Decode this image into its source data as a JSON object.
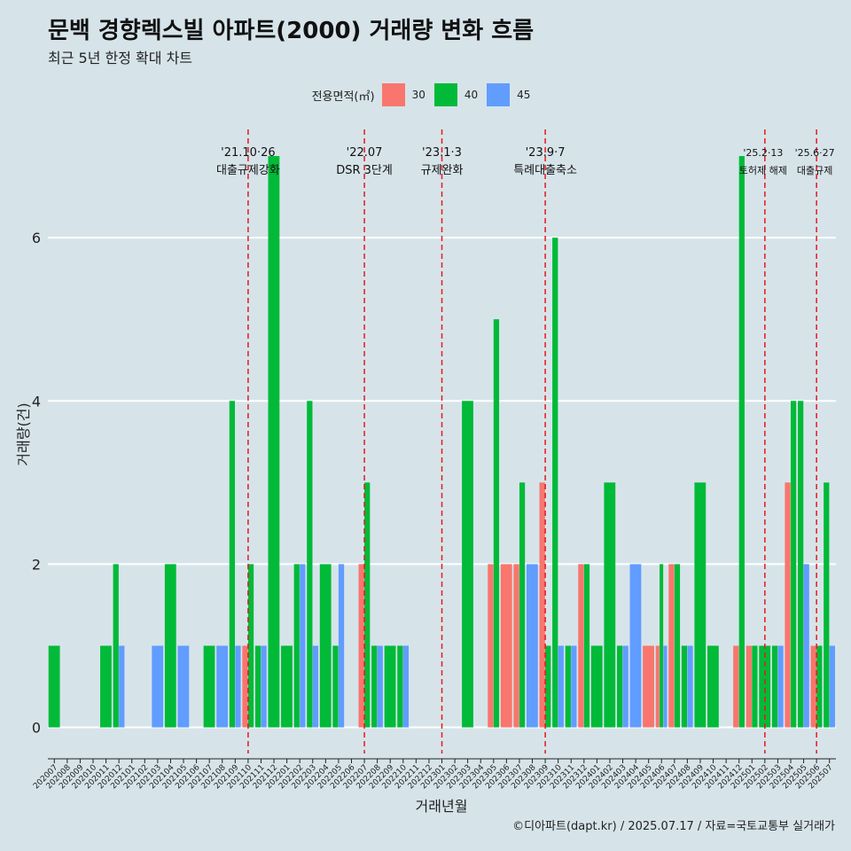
{
  "title": "문백 경향렉스빌 아파트(2000) 거래량 변화 흐름",
  "subtitle": "최근 5년 한정 확대 차트",
  "caption": "©디아파트(dapt.kr) / 2025.07.17 / 자료=국토교통부 실거래가",
  "legend": {
    "title": "전용면적(㎡)",
    "items": [
      {
        "label": "30",
        "color": "#f8766d"
      },
      {
        "label": "40",
        "color": "#00ba38"
      },
      {
        "label": "45",
        "color": "#619cff"
      }
    ]
  },
  "colors": {
    "background": "#d6e4ea",
    "grid": "#ffffff",
    "event_line": "#e41a1c"
  },
  "chart_data": {
    "type": "bar",
    "xlabel": "거래년월",
    "ylabel": "거래량(건)",
    "ylim": [
      -0.32,
      7.5
    ],
    "yticks": [
      0,
      2,
      4,
      6
    ],
    "months": [
      "202007",
      "202008",
      "202009",
      "202010",
      "202011",
      "202012",
      "202101",
      "202102",
      "202103",
      "202104",
      "202105",
      "202106",
      "202107",
      "202108",
      "202109",
      "202110",
      "202111",
      "202112",
      "202201",
      "202202",
      "202203",
      "202204",
      "202205",
      "202206",
      "202207",
      "202208",
      "202209",
      "202210",
      "202211",
      "202212",
      "202301",
      "202302",
      "202303",
      "202304",
      "202305",
      "202306",
      "202307",
      "202308",
      "202309",
      "202310",
      "202311",
      "202312",
      "202401",
      "202402",
      "202403",
      "202404",
      "202405",
      "202406",
      "202407",
      "202408",
      "202409",
      "202410",
      "202411",
      "202412",
      "202501",
      "202502",
      "202503",
      "202504",
      "202505",
      "202506",
      "202507"
    ],
    "series": [
      {
        "name": "30",
        "color": "#f8766d",
        "points": [
          {
            "x": "202110",
            "y": 1
          },
          {
            "x": "202207",
            "y": 2
          },
          {
            "x": "202305",
            "y": 2
          },
          {
            "x": "202306",
            "y": 2
          },
          {
            "x": "202307",
            "y": 2
          },
          {
            "x": "202309",
            "y": 3
          },
          {
            "x": "202312",
            "y": 2
          },
          {
            "x": "202405",
            "y": 1
          },
          {
            "x": "202406",
            "y": 1
          },
          {
            "x": "202407",
            "y": 2
          },
          {
            "x": "202412",
            "y": 1
          },
          {
            "x": "202501",
            "y": 1
          },
          {
            "x": "202504",
            "y": 3
          },
          {
            "x": "202506",
            "y": 1
          }
        ]
      },
      {
        "name": "40",
        "color": "#00ba38",
        "points": [
          {
            "x": "202007",
            "y": 1
          },
          {
            "x": "202011",
            "y": 1
          },
          {
            "x": "202012",
            "y": 2
          },
          {
            "x": "202104",
            "y": 2
          },
          {
            "x": "202107",
            "y": 1
          },
          {
            "x": "202109",
            "y": 4
          },
          {
            "x": "202110",
            "y": 2
          },
          {
            "x": "202111",
            "y": 1
          },
          {
            "x": "202112",
            "y": 7
          },
          {
            "x": "202201",
            "y": 1
          },
          {
            "x": "202202",
            "y": 2
          },
          {
            "x": "202203",
            "y": 4
          },
          {
            "x": "202204",
            "y": 2
          },
          {
            "x": "202205",
            "y": 1
          },
          {
            "x": "202207",
            "y": 3
          },
          {
            "x": "202208",
            "y": 1
          },
          {
            "x": "202209",
            "y": 1
          },
          {
            "x": "202210",
            "y": 1
          },
          {
            "x": "202303",
            "y": 4
          },
          {
            "x": "202305",
            "y": 5
          },
          {
            "x": "202307",
            "y": 3
          },
          {
            "x": "202309",
            "y": 1
          },
          {
            "x": "202310",
            "y": 6
          },
          {
            "x": "202311",
            "y": 1
          },
          {
            "x": "202312",
            "y": 2
          },
          {
            "x": "202401",
            "y": 1
          },
          {
            "x": "202402",
            "y": 3
          },
          {
            "x": "202403",
            "y": 1
          },
          {
            "x": "202406",
            "y": 2
          },
          {
            "x": "202407",
            "y": 2
          },
          {
            "x": "202408",
            "y": 1
          },
          {
            "x": "202409",
            "y": 3
          },
          {
            "x": "202410",
            "y": 1
          },
          {
            "x": "202412",
            "y": 7
          },
          {
            "x": "202501",
            "y": 1
          },
          {
            "x": "202502",
            "y": 1
          },
          {
            "x": "202503",
            "y": 1
          },
          {
            "x": "202504",
            "y": 4
          },
          {
            "x": "202505",
            "y": 4
          },
          {
            "x": "202506",
            "y": 1
          },
          {
            "x": "202507",
            "y": 3
          }
        ]
      },
      {
        "name": "45",
        "color": "#619cff",
        "points": [
          {
            "x": "202012",
            "y": 1
          },
          {
            "x": "202103",
            "y": 1
          },
          {
            "x": "202105",
            "y": 1
          },
          {
            "x": "202108",
            "y": 1
          },
          {
            "x": "202109",
            "y": 1
          },
          {
            "x": "202111",
            "y": 1
          },
          {
            "x": "202202",
            "y": 2
          },
          {
            "x": "202203",
            "y": 1
          },
          {
            "x": "202205",
            "y": 2
          },
          {
            "x": "202208",
            "y": 1
          },
          {
            "x": "202210",
            "y": 1
          },
          {
            "x": "202308",
            "y": 2
          },
          {
            "x": "202310",
            "y": 1
          },
          {
            "x": "202311",
            "y": 1
          },
          {
            "x": "202403",
            "y": 1
          },
          {
            "x": "202404",
            "y": 2
          },
          {
            "x": "202406",
            "y": 1
          },
          {
            "x": "202408",
            "y": 1
          },
          {
            "x": "202503",
            "y": 1
          },
          {
            "x": "202505",
            "y": 2
          },
          {
            "x": "202507",
            "y": 1
          }
        ]
      }
    ],
    "events": [
      {
        "x": "202110",
        "date": "'21.10·26",
        "label": "대출규제강화"
      },
      {
        "x": "202207",
        "date": "'22.07",
        "label": "DSR 3단계"
      },
      {
        "x": "202301",
        "date": "'23.1·3",
        "label": "규제완화"
      },
      {
        "x": "202309",
        "date": "'23.9·7",
        "label": "특례대출축소"
      },
      {
        "x": "202502",
        "date": "'25.2·13",
        "label": "토허제 해제"
      },
      {
        "x": "202506",
        "date": "'25.6·27",
        "label": "대출규제"
      }
    ]
  }
}
